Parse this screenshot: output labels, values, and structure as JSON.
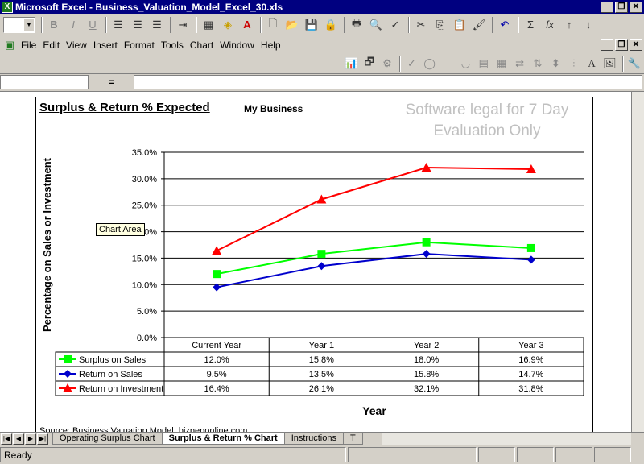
{
  "window": {
    "title": "Microsoft Excel - Business_Valuation_Model_Excel_30.xls",
    "app_icon": "excel-icon"
  },
  "menu": [
    "File",
    "Edit",
    "View",
    "Insert",
    "Format",
    "Tools",
    "Chart",
    "Window",
    "Help"
  ],
  "formula_bar": {
    "name_box": "",
    "equals": "="
  },
  "chart": {
    "title": "Surplus & Return % Expected",
    "subtitle": "My Business",
    "watermark_line1": "Software legal for 7 Day",
    "watermark_line2": "Evaluation Only",
    "tooltip": "Chart Area",
    "source": "Source: Business Valuation Model, bizpeponline.com"
  },
  "chart_data": {
    "type": "line",
    "title": "Surplus & Return % Expected",
    "subtitle": "My Business",
    "xlabel": "Year",
    "ylabel": "Percentage on Sales or Investment",
    "categories": [
      "Current Year",
      "Year 1",
      "Year 2",
      "Year 3"
    ],
    "ylim": [
      0,
      35
    ],
    "yticks": [
      "0.0%",
      "5.0%",
      "10.0%",
      "15.0%",
      "20.0%",
      "25.0%",
      "30.0%",
      "35.0%"
    ],
    "grid": true,
    "legend": "data-table",
    "series": [
      {
        "name": "Surplus on Sales",
        "color": "#00ff00",
        "marker": "square",
        "values": [
          12.0,
          15.8,
          18.0,
          16.9
        ],
        "labels": [
          "12.0%",
          "15.8%",
          "18.0%",
          "16.9%"
        ]
      },
      {
        "name": "Return on Sales",
        "color": "#0000cc",
        "marker": "diamond",
        "values": [
          9.5,
          13.5,
          15.8,
          14.7
        ],
        "labels": [
          "9.5%",
          "13.5%",
          "15.8%",
          "14.7%"
        ]
      },
      {
        "name": "Return on Investment",
        "color": "#ff0000",
        "marker": "triangle",
        "values": [
          16.4,
          26.1,
          32.1,
          31.8
        ],
        "labels": [
          "16.4%",
          "26.1%",
          "32.1%",
          "31.8%"
        ]
      }
    ]
  },
  "sheet_tabs": [
    "Operating Surplus Chart",
    "Surplus & Return % Chart",
    "Instructions",
    "T"
  ],
  "active_tab": "Surplus & Return % Chart",
  "status": "Ready"
}
